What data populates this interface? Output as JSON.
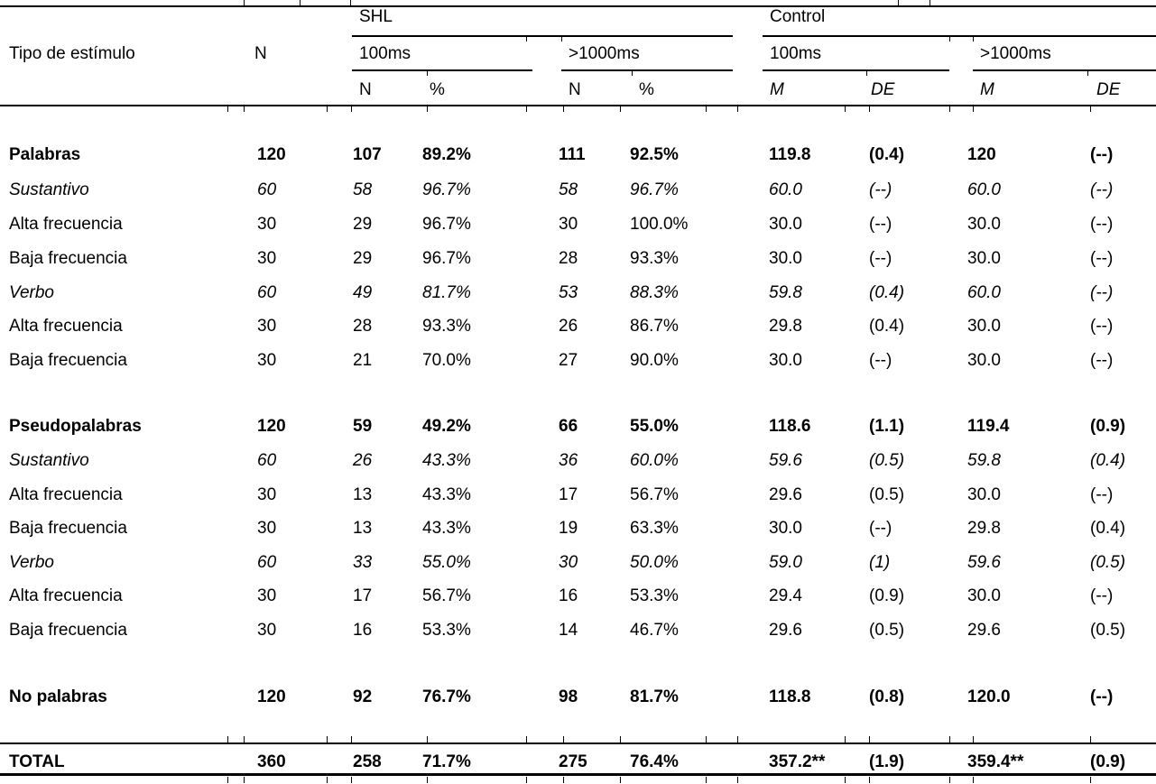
{
  "table": {
    "header": {
      "stub": "Tipo de estímulo",
      "n": "N",
      "groups": [
        {
          "label": "SHL",
          "subgroups": [
            {
              "label": "100ms",
              "cols": [
                "N",
                "%"
              ]
            },
            {
              "label": ">1000ms",
              "cols": [
                "N",
                "%"
              ]
            }
          ]
        },
        {
          "label": "Control",
          "subgroups": [
            {
              "label": "100ms",
              "cols": [
                "M",
                "DE"
              ]
            },
            {
              "label": ">1000ms",
              "cols": [
                "M",
                "DE"
              ]
            }
          ]
        }
      ]
    },
    "rows": [
      {
        "label": "Palabras",
        "level": "group",
        "values": [
          "120",
          "107",
          "89.2%",
          "111",
          "92.5%",
          "119.8",
          "(0.4)",
          "120",
          "(--)"
        ]
      },
      {
        "label": "Sustantivo",
        "level": "sub",
        "values": [
          "60",
          "58",
          "96.7%",
          "58",
          "96.7%",
          "60.0",
          "(--)",
          "60.0",
          "(--)"
        ]
      },
      {
        "label": "Alta frecuencia",
        "level": "item",
        "values": [
          "30",
          "29",
          "96.7%",
          "30",
          "100.0%",
          "30.0",
          "(--)",
          "30.0",
          "(--)"
        ]
      },
      {
        "label": "Baja frecuencia",
        "level": "item",
        "values": [
          "30",
          "29",
          "96.7%",
          "28",
          "93.3%",
          "30.0",
          "(--)",
          "30.0",
          "(--)"
        ]
      },
      {
        "label": "Verbo",
        "level": "sub",
        "values": [
          "60",
          "49",
          "81.7%",
          "53",
          "88.3%",
          "59.8",
          "(0.4)",
          "60.0",
          "(--)"
        ]
      },
      {
        "label": "Alta frecuencia",
        "level": "item",
        "values": [
          "30",
          "28",
          "93.3%",
          "26",
          "86.7%",
          "29.8",
          "(0.4)",
          "30.0",
          "(--)"
        ]
      },
      {
        "label": "Baja frecuencia",
        "level": "item",
        "values": [
          "30",
          "21",
          "70.0%",
          "27",
          "90.0%",
          "30.0",
          "(--)",
          "30.0",
          "(--)"
        ]
      },
      {
        "label": "Pseudopalabras",
        "level": "group",
        "values": [
          "120",
          "59",
          "49.2%",
          "66",
          "55.0%",
          "118.6",
          "(1.1)",
          "119.4",
          "(0.9)"
        ]
      },
      {
        "label": "Sustantivo",
        "level": "sub",
        "values": [
          "60",
          "26",
          "43.3%",
          "36",
          "60.0%",
          "59.6",
          "(0.5)",
          "59.8",
          "(0.4)"
        ]
      },
      {
        "label": "Alta frecuencia",
        "level": "item",
        "values": [
          "30",
          "13",
          "43.3%",
          "17",
          "56.7%",
          "29.6",
          "(0.5)",
          "30.0",
          "(--)"
        ]
      },
      {
        "label": "Baja frecuencia",
        "level": "item",
        "values": [
          "30",
          "13",
          "43.3%",
          "19",
          "63.3%",
          "30.0",
          "(--)",
          "29.8",
          "(0.4)"
        ]
      },
      {
        "label": "Verbo",
        "level": "sub",
        "values": [
          "60",
          "33",
          "55.0%",
          "30",
          "50.0%",
          "59.0",
          "(1)",
          "59.6",
          "(0.5)"
        ]
      },
      {
        "label": "Alta frecuencia",
        "level": "item",
        "values": [
          "30",
          "17",
          "56.7%",
          "16",
          "53.3%",
          "29.4",
          "(0.9)",
          "30.0",
          "(--)"
        ]
      },
      {
        "label": "Baja frecuencia",
        "level": "item",
        "values": [
          "30",
          "16",
          "53.3%",
          "14",
          "46.7%",
          "29.6",
          "(0.5)",
          "29.6",
          "(0.5)"
        ]
      },
      {
        "label": "No palabras",
        "level": "group",
        "values": [
          "120",
          "92",
          "76.7%",
          "98",
          "81.7%",
          "118.8",
          "(0.8)",
          "120.0",
          "(--)"
        ]
      },
      {
        "label": "TOTAL",
        "level": "total",
        "values": [
          "360",
          "258",
          "71.7%",
          "275",
          "76.4%",
          "357.2**",
          "(1.9)",
          "359.4**",
          "(0.9)"
        ]
      }
    ],
    "colors": {
      "text": "#000000",
      "background": "#ffffff",
      "rule": "#000000"
    }
  }
}
